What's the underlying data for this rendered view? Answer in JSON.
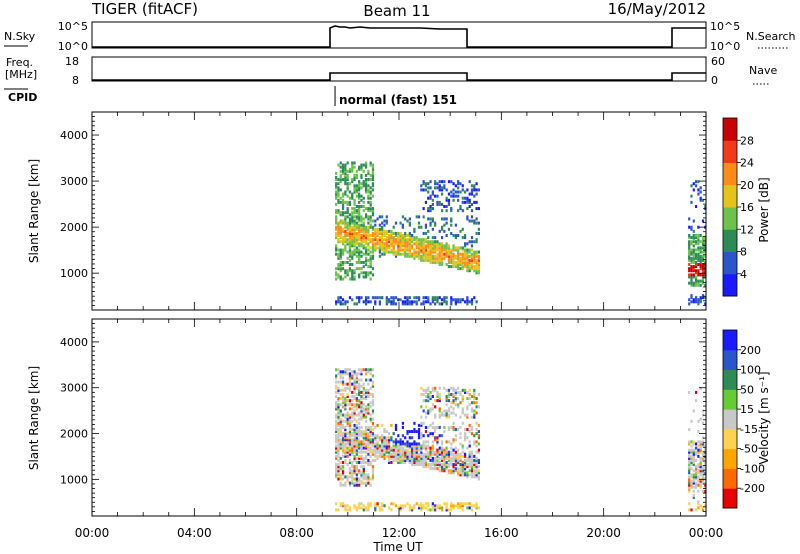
{
  "header": {
    "left_title": "TIGER (fitACF)",
    "center_title": "Beam 11",
    "right_title": "16/May/2012"
  },
  "top_panels": {
    "nsky_label": "N.Sky",
    "nsky_ticks": [
      "10^5",
      "10^0"
    ],
    "nsearch_label": "N.Search",
    "nsearch_ticks": [
      "10^5",
      "10^0"
    ],
    "freq_label_1": "Freq.",
    "freq_label_2": "[MHz]",
    "freq_ticks": [
      "18",
      "8"
    ],
    "nave_label": "Nave",
    "nave_ticks": [
      "60",
      "0"
    ],
    "cpid_label": "CPID",
    "cpid_text": "normal (fast) 151",
    "cpid_start_hour": 9.5
  },
  "chart_data": [
    {
      "type": "heatmap",
      "title": "",
      "ylabel": "Slant Range [km]",
      "xlabel": "",
      "x_range_hours": [
        0,
        24
      ],
      "ylim": [
        200,
        4500
      ],
      "y_ticks": [
        1000,
        2000,
        3000,
        4000
      ],
      "y_tick_labels": [
        "1000",
        "2000",
        "3000",
        "4000"
      ],
      "colorbar": {
        "label": "Power [dB]",
        "ticks": [
          "4",
          "8",
          "12",
          "16",
          "20",
          "24",
          "28"
        ],
        "values": [
          4,
          8,
          12,
          16,
          20,
          24,
          28
        ],
        "range": [
          0,
          32
        ],
        "colors": [
          "#1a1aff",
          "#2b55c8",
          "#2e8b57",
          "#6cc24a",
          "#e6c31a",
          "#ff8c1a",
          "#f23a1a",
          "#c80000"
        ]
      },
      "data_windows_hours": [
        [
          9.5,
          15.1
        ],
        [
          23.3,
          24.0
        ]
      ]
    },
    {
      "type": "heatmap",
      "title": "",
      "ylabel": "Slant Range [km]",
      "xlabel": "Time UT",
      "x_range_hours": [
        0,
        24
      ],
      "ylim": [
        200,
        4500
      ],
      "y_ticks": [
        1000,
        2000,
        3000,
        4000
      ],
      "y_tick_labels": [
        "1000",
        "2000",
        "3000",
        "4000"
      ],
      "x_ticks": [
        0,
        4,
        8,
        12,
        16,
        20,
        24
      ],
      "x_tick_labels": [
        "00:00",
        "04:00",
        "08:00",
        "12:00",
        "16:00",
        "20:00",
        "00:00"
      ],
      "colorbar": {
        "label": "Velocity [m s⁻¹]",
        "ticks": [
          "-200",
          "-100",
          "-50",
          "-15",
          "15",
          "50",
          "100",
          "200"
        ],
        "colors": [
          "#e60000",
          "#ff6a00",
          "#ffa500",
          "#ffd24d",
          "#c8c8c8",
          "#66cc33",
          "#2e8b57",
          "#2b55c8",
          "#1a1aff"
        ]
      },
      "data_windows_hours": [
        [
          9.5,
          15.1
        ],
        [
          23.3,
          24.0
        ]
      ]
    }
  ]
}
